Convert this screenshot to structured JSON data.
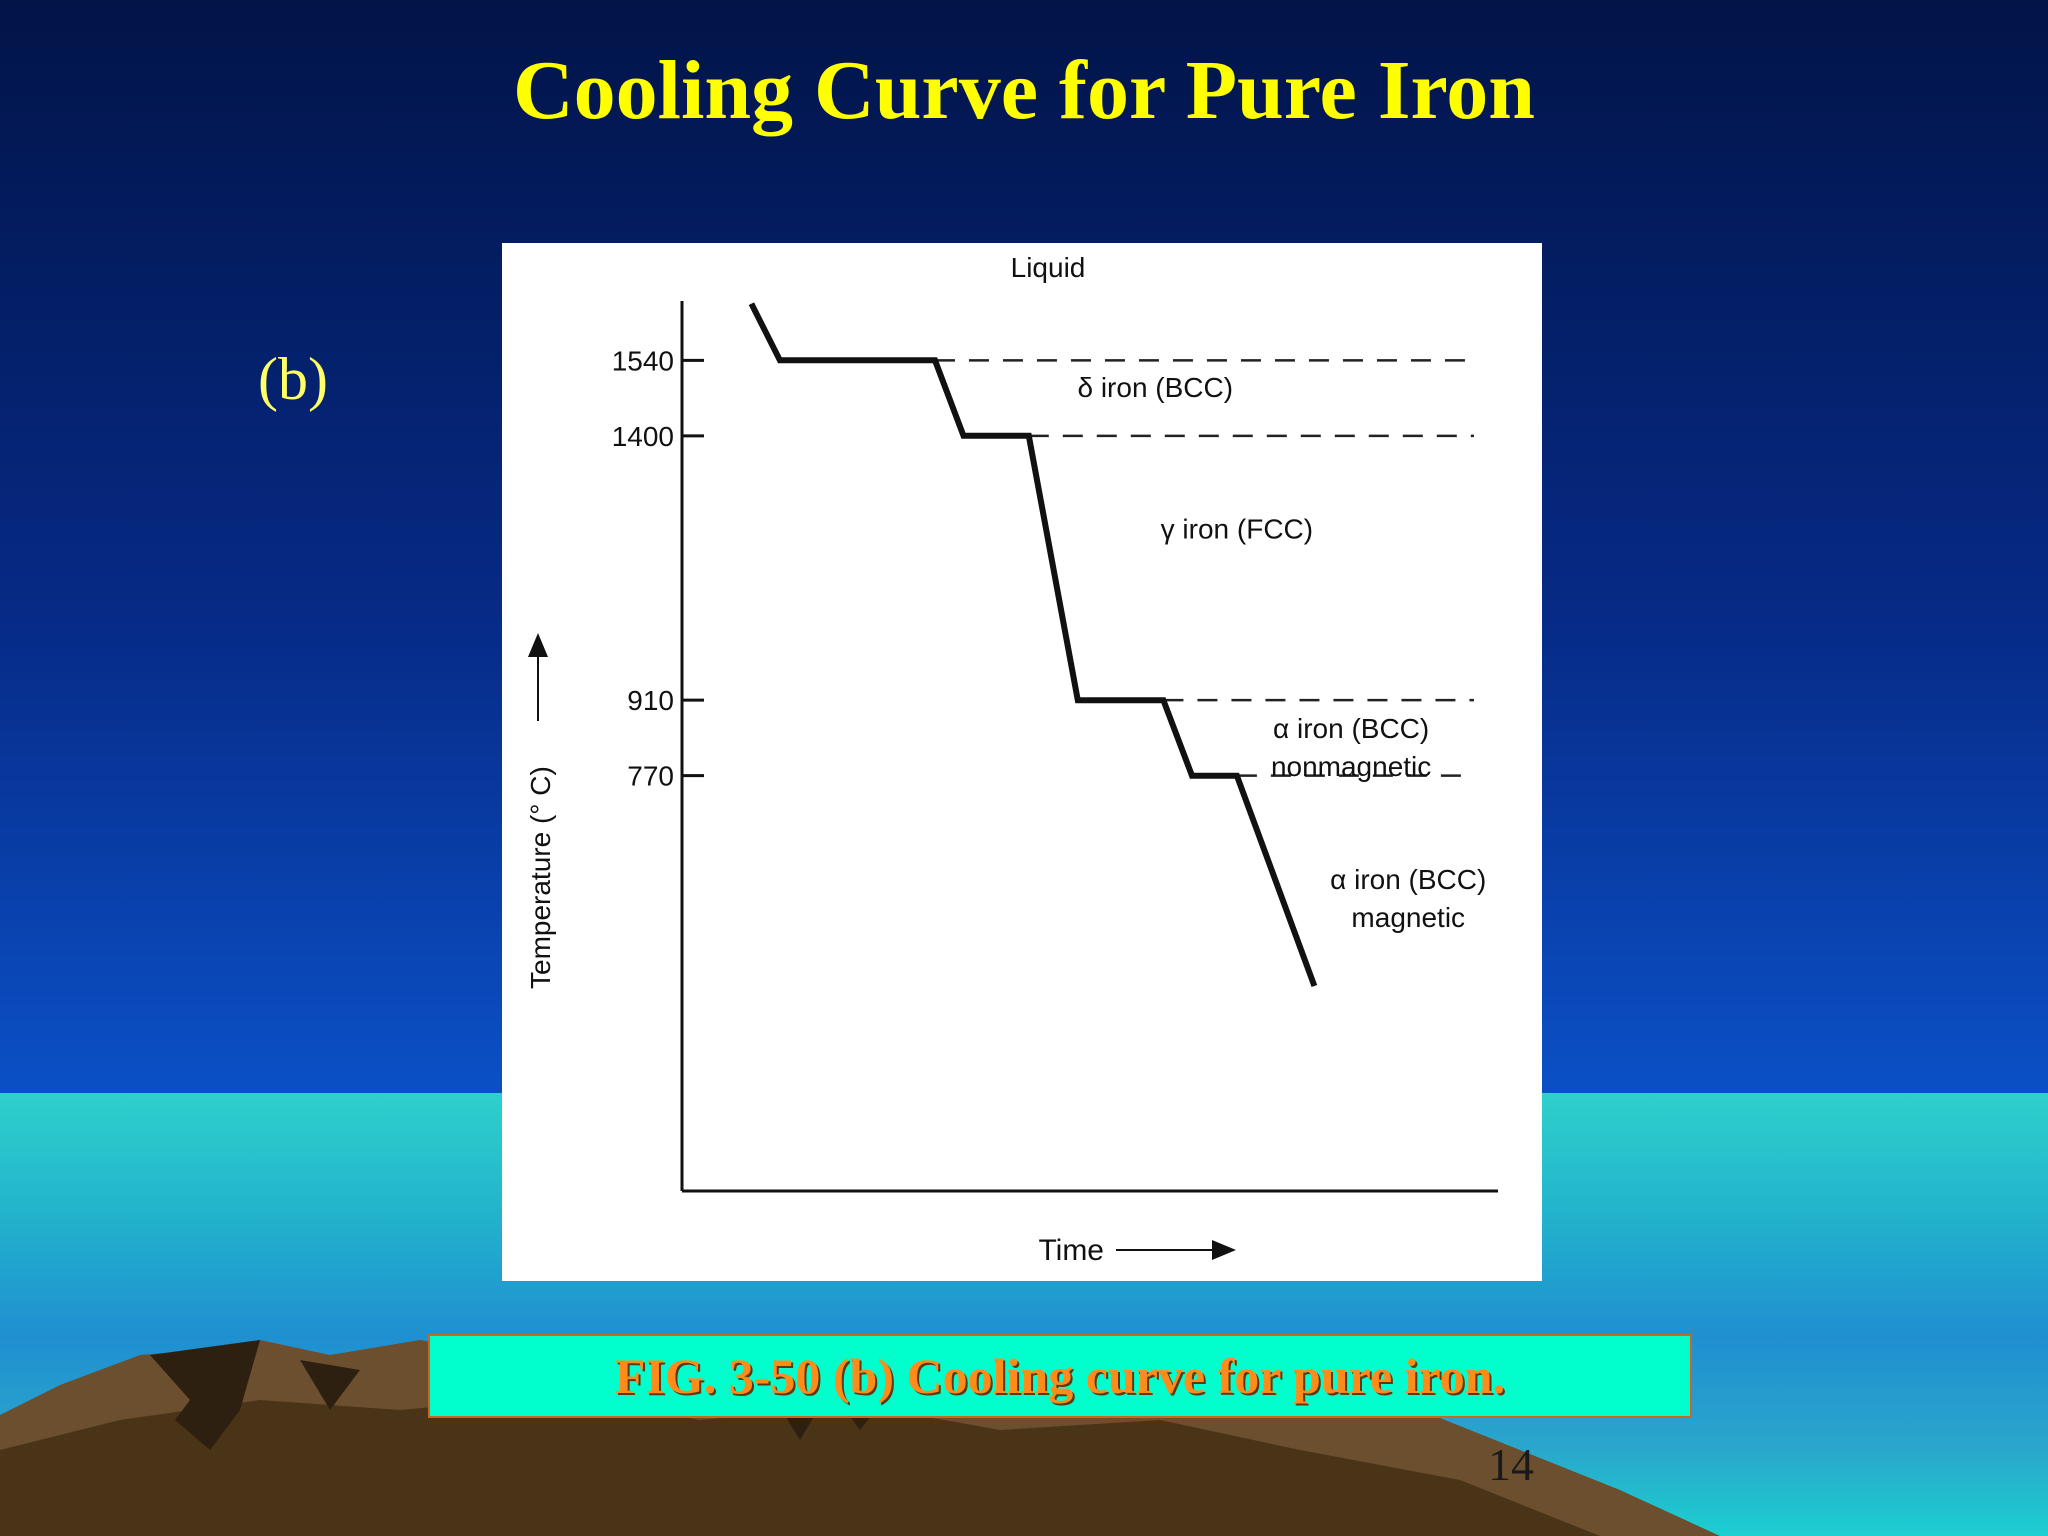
{
  "slide": {
    "title": "Cooling Curve for Pure Iron",
    "panel_label": "(b)",
    "caption": "FIG. 3-50  (b) Cooling curve for pure iron.",
    "page_number": "14"
  },
  "colors": {
    "title": "#ffff00",
    "caption_bg": "#00ffcc",
    "caption_text": "#ff8c1a"
  },
  "chart_data": {
    "type": "line",
    "xlabel": "Time",
    "ylabel": "Temperature (° C)",
    "top_label": "Liquid",
    "y_ticks": [
      1540,
      1400,
      910,
      770
    ],
    "xlim": [
      0,
      100
    ],
    "ylim": [
      0,
      1650
    ],
    "grid": false,
    "series": [
      {
        "points": [
          {
            "x": 8.5,
            "y": 1645
          },
          {
            "x": 12,
            "y": 1540
          },
          {
            "x": 31,
            "y": 1540
          },
          {
            "x": 34.5,
            "y": 1400
          },
          {
            "x": 42.5,
            "y": 1400
          },
          {
            "x": 48.5,
            "y": 910
          },
          {
            "x": 59,
            "y": 910
          },
          {
            "x": 62.5,
            "y": 770
          },
          {
            "x": 68,
            "y": 770
          },
          {
            "x": 77.5,
            "y": 380
          }
        ]
      }
    ],
    "reference_lines": [
      {
        "y": 1540,
        "x_start": 31
      },
      {
        "y": 1400,
        "x_start": 42.5
      },
      {
        "y": 910,
        "x_start": 59
      },
      {
        "y": 770,
        "x_start": 68
      }
    ],
    "annotations": [
      {
        "lines": [
          "δ iron (BCC)"
        ],
        "x": 58,
        "y": 1472
      },
      {
        "lines": [
          "γ iron (FCC)"
        ],
        "x": 68,
        "y": 1210
      },
      {
        "lines": [
          "α iron (BCC)",
          "nonmagnetic"
        ],
        "x": 82,
        "y": 840
      },
      {
        "lines": [
          "α iron (BCC)",
          "magnetic"
        ],
        "x": 89,
        "y": 560
      }
    ]
  }
}
